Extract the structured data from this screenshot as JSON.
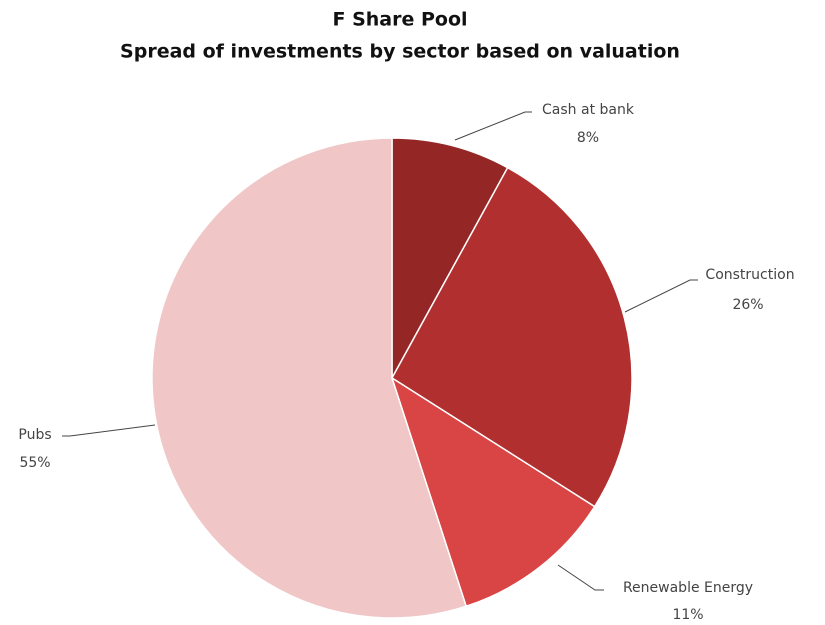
{
  "chart_data": {
    "type": "pie",
    "title": "F Share Pool",
    "subtitle": "Spread of investments by sector based on valuation",
    "categories": [
      "Cash at bank",
      "Construction",
      "Renewable Energy",
      "Pubs"
    ],
    "values": [
      8,
      26,
      11,
      55
    ],
    "value_labels": [
      "8%",
      "26%",
      "11%",
      "55%"
    ],
    "colors": [
      "#952626",
      "#b12f2f",
      "#d94444",
      "#f0c6c6"
    ]
  }
}
